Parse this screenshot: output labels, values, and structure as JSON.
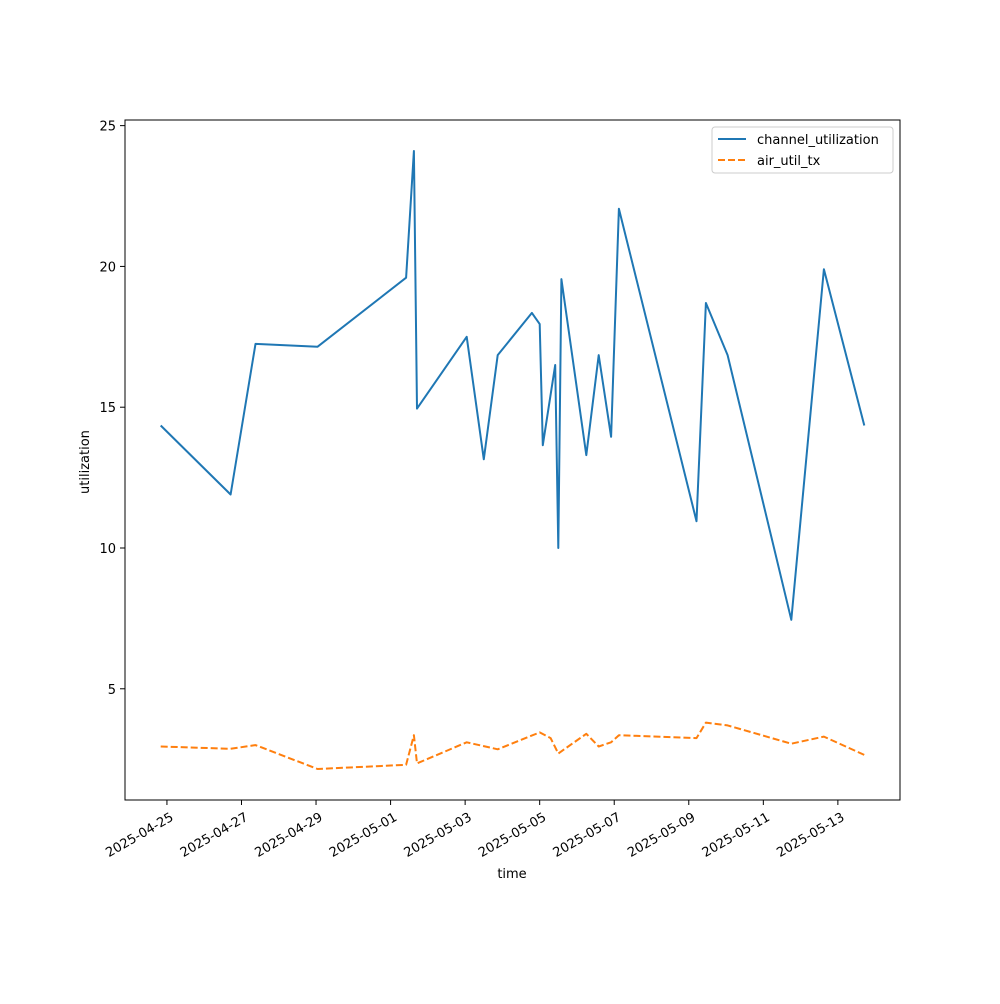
{
  "chart_data": {
    "type": "line",
    "title": "",
    "xlabel": "time",
    "ylabel": "utilization",
    "x_axis_type": "date",
    "xlim": [
      "2025-04-23T21:00:00",
      "2025-05-14T16:00:00"
    ],
    "ylim": [
      1.05,
      25.2
    ],
    "grid": false,
    "legend_position": "top-right",
    "x_tick_labels": [
      "2025-04-25",
      "2025-04-27",
      "2025-04-29",
      "2025-05-01",
      "2025-05-03",
      "2025-05-05",
      "2025-05-07",
      "2025-05-09",
      "2025-05-11",
      "2025-05-13"
    ],
    "y_tick_labels": [
      "5",
      "10",
      "15",
      "20",
      "25"
    ],
    "series": [
      {
        "name": "channel_utilization",
        "color": "#1f77b4",
        "dash": "solid",
        "points": [
          {
            "x": "2025-04-24T20:00:00",
            "y": 14.35
          },
          {
            "x": "2025-04-26T17:00:00",
            "y": 11.9
          },
          {
            "x": "2025-04-27T09:00:00",
            "y": 17.25
          },
          {
            "x": "2025-04-29T01:00:00",
            "y": 17.15
          },
          {
            "x": "2025-05-01T10:00:00",
            "y": 19.6
          },
          {
            "x": "2025-05-01T15:00:00",
            "y": 24.1
          },
          {
            "x": "2025-05-01T17:00:00",
            "y": 14.95
          },
          {
            "x": "2025-05-03T01:00:00",
            "y": 17.5
          },
          {
            "x": "2025-05-03T12:00:00",
            "y": 13.15
          },
          {
            "x": "2025-05-03T21:00:00",
            "y": 16.85
          },
          {
            "x": "2025-05-04T19:00:00",
            "y": 18.35
          },
          {
            "x": "2025-05-05T00:00:00",
            "y": 17.95
          },
          {
            "x": "2025-05-05T02:00:00",
            "y": 13.65
          },
          {
            "x": "2025-05-05T10:00:00",
            "y": 16.5
          },
          {
            "x": "2025-05-05T12:00:00",
            "y": 10.0
          },
          {
            "x": "2025-05-05T14:00:00",
            "y": 19.55
          },
          {
            "x": "2025-05-06T06:00:00",
            "y": 13.3
          },
          {
            "x": "2025-05-06T14:00:00",
            "y": 16.85
          },
          {
            "x": "2025-05-06T22:00:00",
            "y": 13.95
          },
          {
            "x": "2025-05-07T03:00:00",
            "y": 22.05
          },
          {
            "x": "2025-05-09T05:00:00",
            "y": 10.95
          },
          {
            "x": "2025-05-09T11:00:00",
            "y": 18.7
          },
          {
            "x": "2025-05-10T01:00:00",
            "y": 16.85
          },
          {
            "x": "2025-05-11T18:00:00",
            "y": 7.45
          },
          {
            "x": "2025-05-12T15:00:00",
            "y": 19.9
          },
          {
            "x": "2025-05-13T17:00:00",
            "y": 14.35
          }
        ]
      },
      {
        "name": "air_util_tx",
        "color": "#ff7f0e",
        "dash": "dashed",
        "points": [
          {
            "x": "2025-04-24T20:00:00",
            "y": 2.95
          },
          {
            "x": "2025-04-26T17:00:00",
            "y": 2.87
          },
          {
            "x": "2025-04-27T09:00:00",
            "y": 3.0
          },
          {
            "x": "2025-04-29T01:00:00",
            "y": 2.15
          },
          {
            "x": "2025-05-01T10:00:00",
            "y": 2.3
          },
          {
            "x": "2025-05-01T15:00:00",
            "y": 3.35
          },
          {
            "x": "2025-05-01T17:00:00",
            "y": 2.35
          },
          {
            "x": "2025-05-03T01:00:00",
            "y": 3.1
          },
          {
            "x": "2025-05-03T21:00:00",
            "y": 2.85
          },
          {
            "x": "2025-05-05T00:00:00",
            "y": 3.45
          },
          {
            "x": "2025-05-05T07:00:00",
            "y": 3.25
          },
          {
            "x": "2025-05-05T12:00:00",
            "y": 2.7
          },
          {
            "x": "2025-05-06T06:00:00",
            "y": 3.4
          },
          {
            "x": "2025-05-06T14:00:00",
            "y": 2.95
          },
          {
            "x": "2025-05-06T22:00:00",
            "y": 3.1
          },
          {
            "x": "2025-05-07T03:00:00",
            "y": 3.35
          },
          {
            "x": "2025-05-09T05:00:00",
            "y": 3.25
          },
          {
            "x": "2025-05-09T11:00:00",
            "y": 3.8
          },
          {
            "x": "2025-05-10T01:00:00",
            "y": 3.7
          },
          {
            "x": "2025-05-11T18:00:00",
            "y": 3.05
          },
          {
            "x": "2025-05-12T15:00:00",
            "y": 3.3
          },
          {
            "x": "2025-05-13T17:00:00",
            "y": 2.65
          }
        ]
      }
    ]
  }
}
